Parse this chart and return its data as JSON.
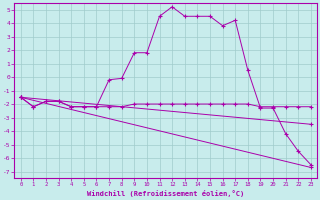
{
  "xlabel": "Windchill (Refroidissement éolien,°C)",
  "background_color": "#c8ecec",
  "line_color": "#aa00aa",
  "grid_color": "#a0cccc",
  "ylim": [
    -7.5,
    5.5
  ],
  "xlim": [
    -0.5,
    23.5
  ],
  "yticks": [
    5,
    4,
    3,
    2,
    1,
    0,
    -1,
    -2,
    -3,
    -4,
    -5,
    -6,
    -7
  ],
  "xticks": [
    0,
    1,
    2,
    3,
    4,
    5,
    6,
    7,
    8,
    9,
    10,
    11,
    12,
    13,
    14,
    15,
    16,
    17,
    18,
    19,
    20,
    21,
    22,
    23
  ],
  "series": [
    {
      "x": [
        0,
        1,
        2,
        3,
        4,
        5,
        6,
        7,
        8,
        9,
        10,
        11,
        12,
        13,
        14,
        15,
        16,
        17,
        18,
        19,
        20,
        21,
        22,
        23
      ],
      "y": [
        -1.5,
        -2.2,
        -1.8,
        -1.8,
        -2.2,
        -2.2,
        -2.2,
        -0.2,
        -0.1,
        1.8,
        1.8,
        4.5,
        5.2,
        4.5,
        4.5,
        4.5,
        3.8,
        4.2,
        0.5,
        -2.3,
        -2.3,
        -4.2,
        -5.5,
        -6.5
      ]
    },
    {
      "x": [
        0,
        1,
        2,
        3,
        4,
        5,
        6,
        7,
        8,
        9,
        10,
        11,
        12,
        13,
        14,
        15,
        16,
        17,
        18,
        19,
        20,
        21,
        22,
        23
      ],
      "y": [
        -1.5,
        -2.2,
        -1.8,
        -1.8,
        -2.2,
        -2.2,
        -2.2,
        -2.2,
        -2.2,
        -2.0,
        -2.0,
        -2.0,
        -2.0,
        -2.0,
        -2.0,
        -2.0,
        -2.0,
        -2.0,
        -2.0,
        -2.2,
        -2.2,
        -2.2,
        -2.2,
        -2.2
      ]
    },
    {
      "x": [
        0,
        23
      ],
      "y": [
        -1.5,
        -3.5
      ]
    },
    {
      "x": [
        0,
        23
      ],
      "y": [
        -1.5,
        -6.7
      ]
    }
  ]
}
